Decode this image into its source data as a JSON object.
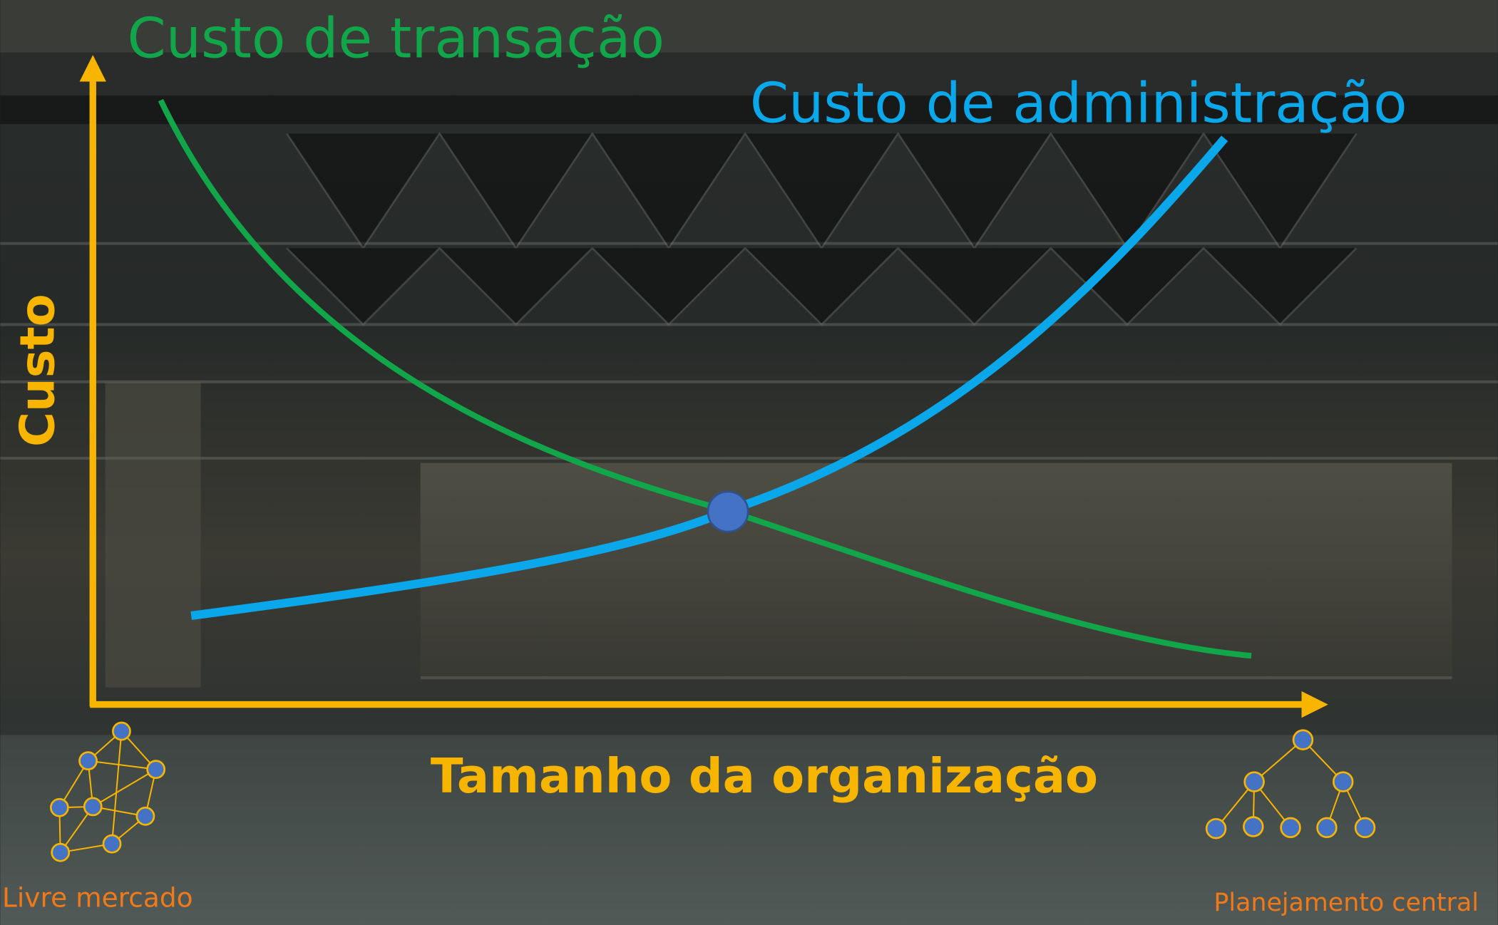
{
  "curves": {
    "transaction_cost": "Custo de transação",
    "administration_cost": "Custo de administração"
  },
  "axes": {
    "y": "Custo",
    "x": "Tamanho da organização"
  },
  "extremes": {
    "left": "Livre mercado",
    "right": "Planejamento central"
  }
}
